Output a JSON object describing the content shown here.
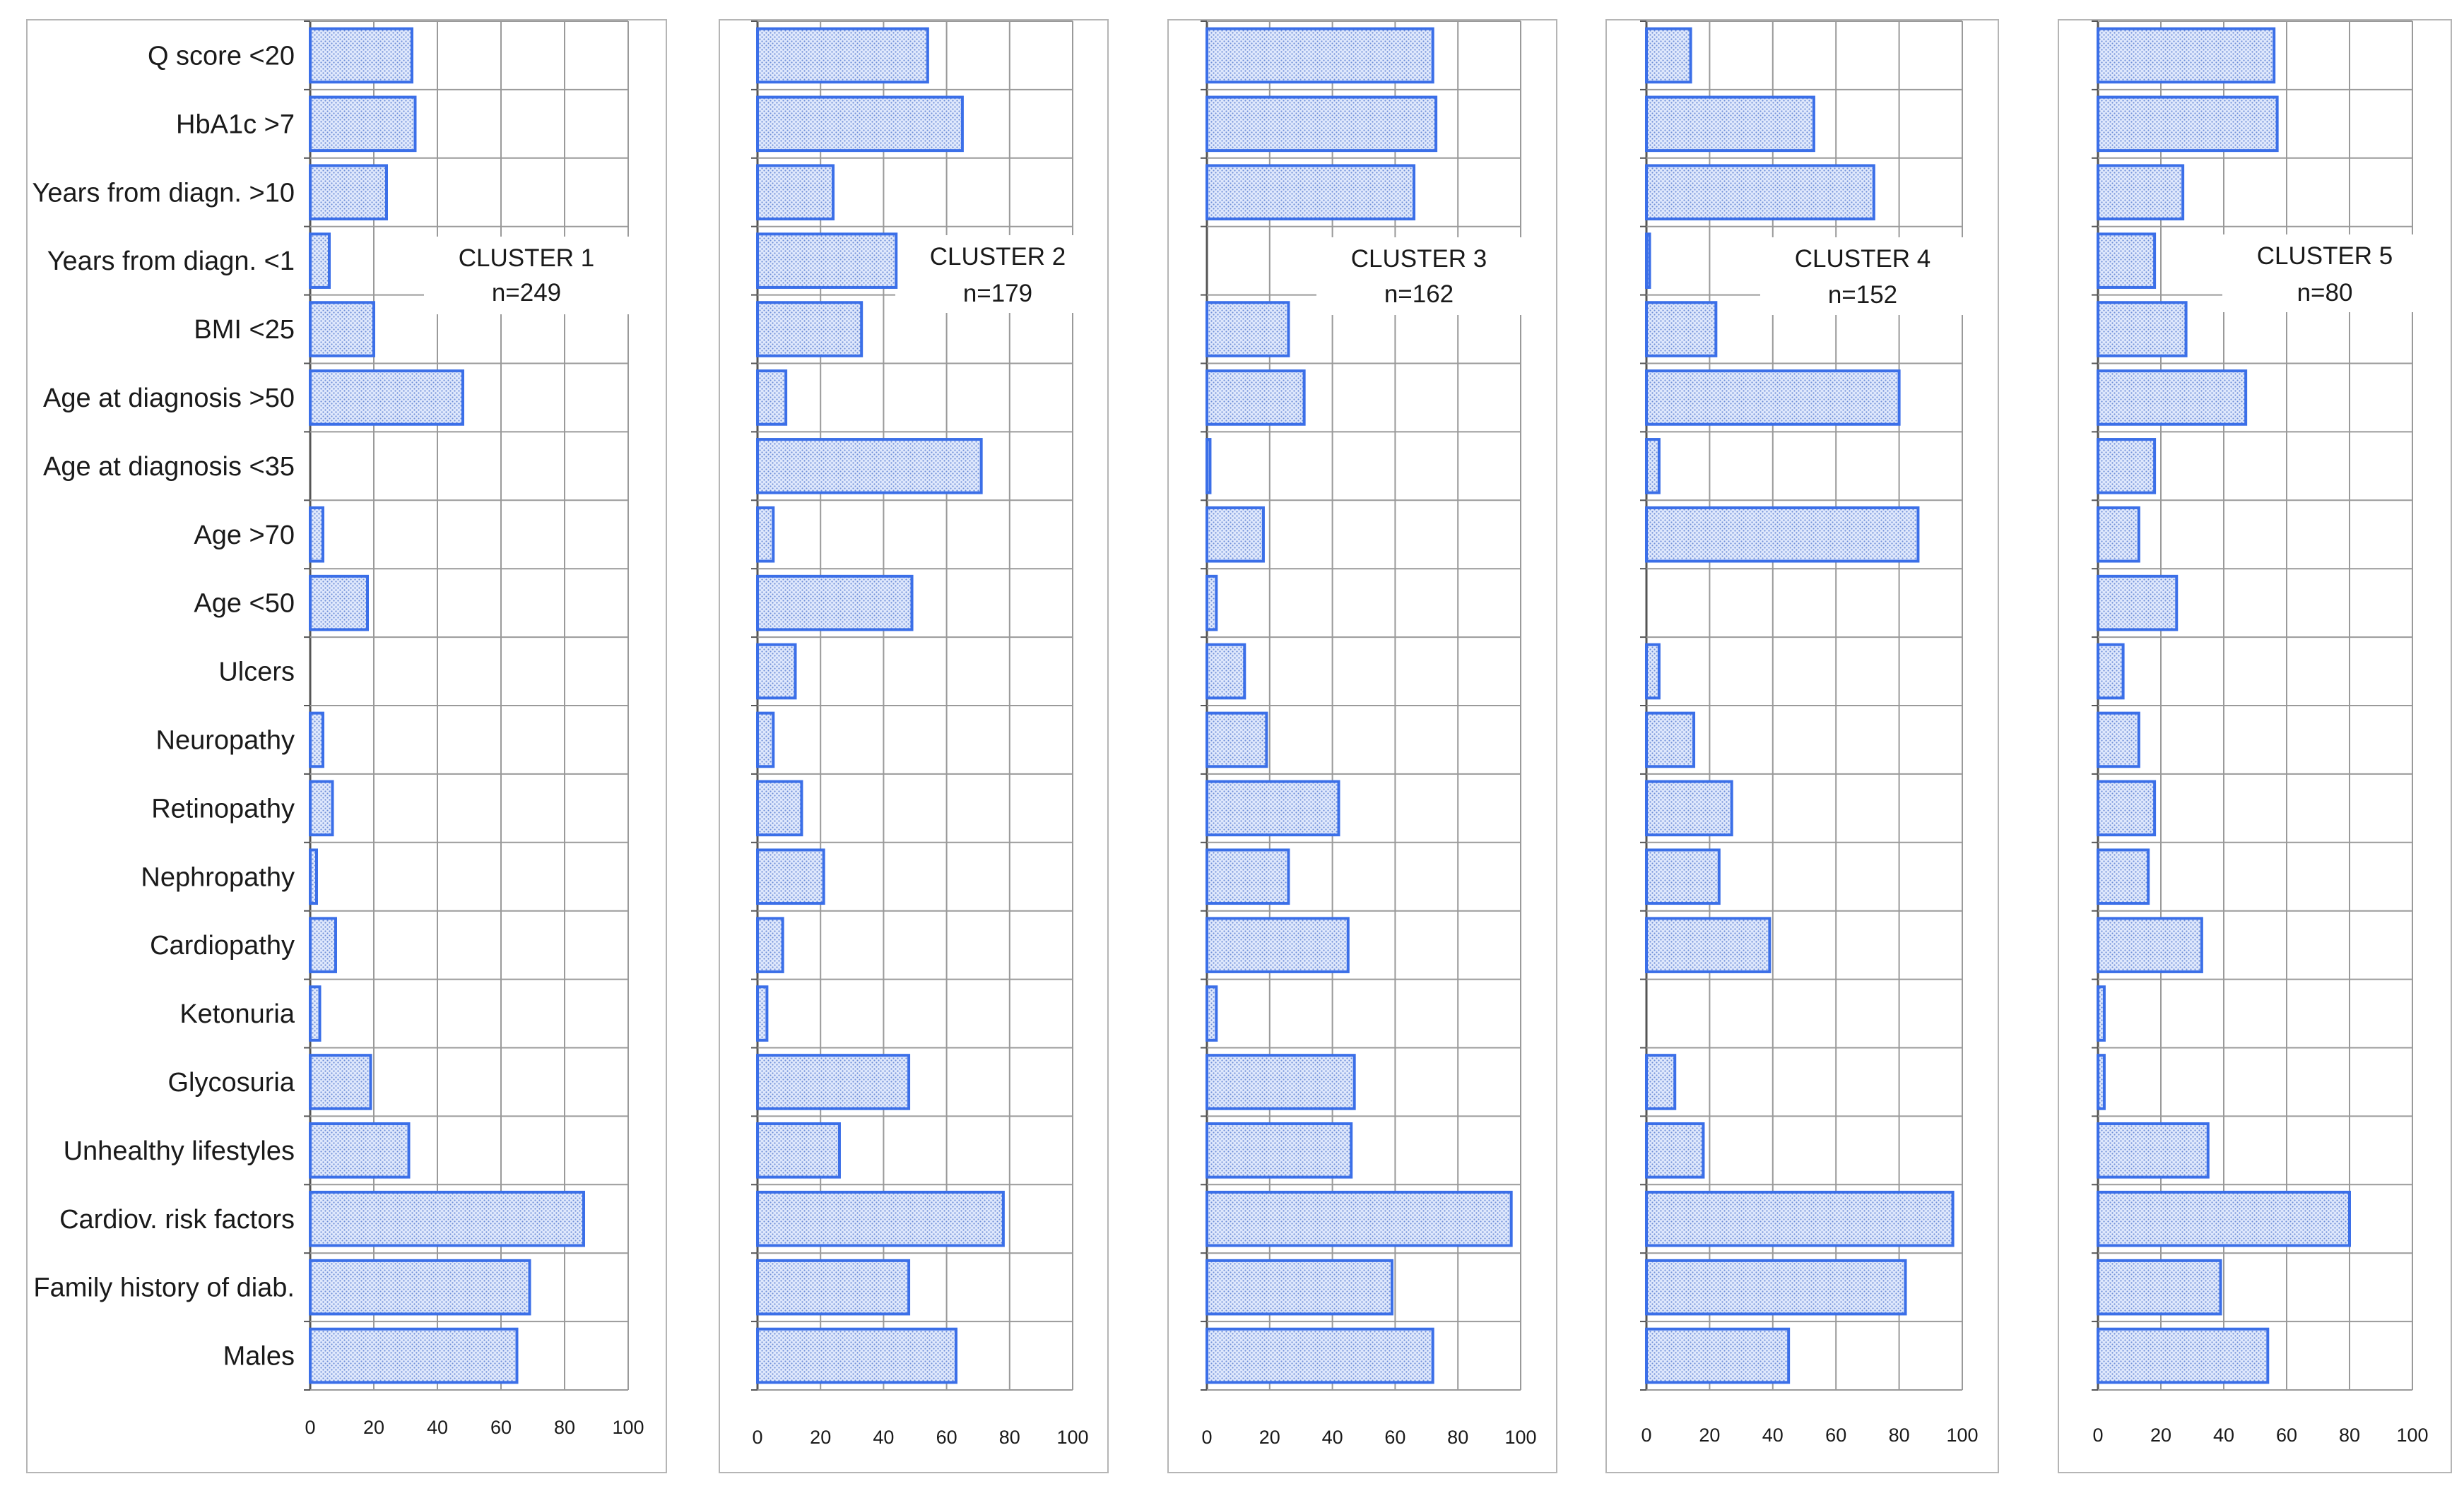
{
  "chart_data": {
    "type": "bar",
    "orientation": "horizontal",
    "categories": [
      "Q score <20",
      "HbA1c >7",
      "Years from diagn. >10",
      "Years from diagn. <1",
      "BMI <25",
      "Age at diagnosis >50",
      "Age at diagnosis <35",
      "Age >70",
      "Age <50",
      "Ulcers",
      "Neuropathy",
      "Retinopathy",
      "Nephropathy",
      "Cardiopathy",
      "Ketonuria",
      "Glycosuria",
      "Unhealthy lifestyles",
      "Cardiov. risk factors",
      "Family history of diab.",
      "Males"
    ],
    "xlim": [
      0,
      100
    ],
    "xticks": [
      "0",
      "20",
      "40",
      "60",
      "80",
      "100"
    ],
    "grid": true,
    "bar_color": "#3b6fe8",
    "bar_fill": "#dbe5fb",
    "panels": [
      {
        "title": "CLUSTER 1",
        "subtitle": "n=249",
        "values": [
          32,
          33,
          24,
          6,
          20,
          48,
          0,
          4,
          18,
          0,
          4,
          7,
          2,
          8,
          3,
          19,
          31,
          86,
          69,
          65
        ]
      },
      {
        "title": "CLUSTER 2",
        "subtitle": "n=179",
        "values": [
          54,
          65,
          24,
          44,
          33,
          9,
          71,
          5,
          49,
          12,
          5,
          14,
          21,
          8,
          3,
          48,
          26,
          78,
          48,
          63
        ]
      },
      {
        "title": "CLUSTER 3",
        "subtitle": "n=162",
        "values": [
          72,
          73,
          66,
          0,
          26,
          31,
          1,
          18,
          3,
          12,
          19,
          42,
          26,
          45,
          3,
          47,
          46,
          97,
          59,
          72
        ]
      },
      {
        "title": "CLUSTER 4",
        "subtitle": "n=152",
        "values": [
          14,
          53,
          72,
          1,
          22,
          80,
          4,
          86,
          0,
          4,
          15,
          27,
          23,
          39,
          0,
          9,
          18,
          97,
          82,
          45
        ]
      },
      {
        "title": "CLUSTER 5",
        "subtitle": "n=80",
        "values": [
          56,
          57,
          27,
          18,
          28,
          47,
          18,
          13,
          25,
          8,
          13,
          18,
          16,
          33,
          2,
          2,
          35,
          80,
          39,
          54
        ]
      }
    ]
  }
}
